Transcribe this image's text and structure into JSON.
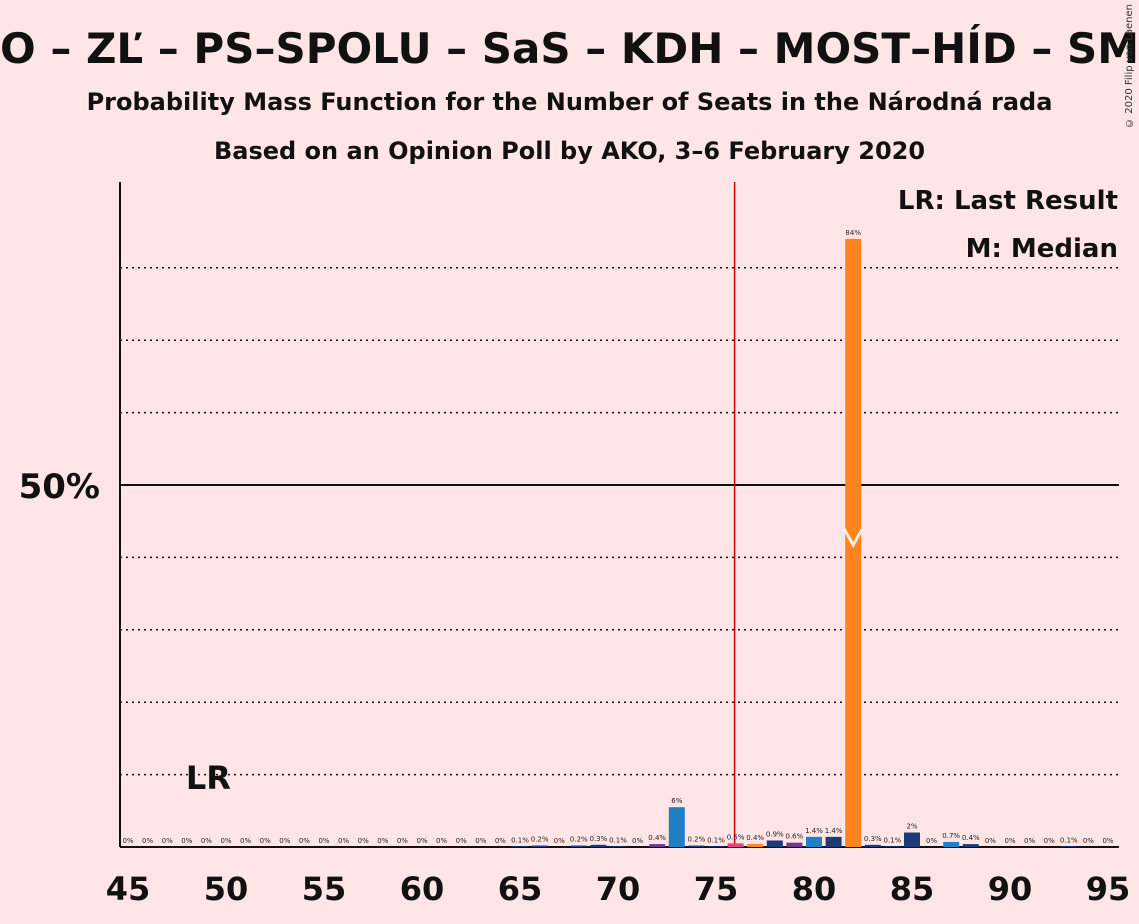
{
  "title": "O – ZĽ – PS–SPOLU – SaS – KDH – MOST–HÍD – SMK",
  "subtitle1": "Probability Mass Function for the Number of Seats in the Národná rada",
  "subtitle2": "Based on an Opinion Poll by AKO, 3–6 February 2020",
  "copyright": "© 2020 Filip van Laenen",
  "legend": {
    "lr": "LR: Last Result",
    "m": "M: Median"
  },
  "markers": {
    "lr_label": "LR",
    "median_symbol": "M"
  },
  "colors": {
    "background": "#ffe5e5",
    "dark_blue": "#1a3a7a",
    "blue": "#1f7fc8",
    "purple": "#6b3a8a",
    "red_pink": "#e8447a",
    "orange": "#ff8420",
    "majority_line": "#cc0000"
  },
  "chart_data": {
    "type": "bar",
    "xlim": [
      45,
      95
    ],
    "ylim": [
      0,
      92
    ],
    "y_tick_label": "50%",
    "y_tick_value": 50,
    "x_ticks": [
      45,
      50,
      55,
      60,
      65,
      70,
      75,
      80,
      85,
      90,
      95
    ],
    "gridlines": [
      10,
      20,
      30,
      40,
      60,
      70,
      80
    ],
    "majority_line_x": 76,
    "last_result_x": 49,
    "median_x": 82,
    "bars": [
      {
        "x": 45,
        "value": 0,
        "label": "0%",
        "color": "dark_blue"
      },
      {
        "x": 46,
        "value": 0,
        "label": "0%",
        "color": "dark_blue"
      },
      {
        "x": 47,
        "value": 0,
        "label": "0%",
        "color": "dark_blue"
      },
      {
        "x": 48,
        "value": 0,
        "label": "0%",
        "color": "dark_blue"
      },
      {
        "x": 49,
        "value": 0,
        "label": "0%",
        "color": "dark_blue"
      },
      {
        "x": 50,
        "value": 0,
        "label": "0%",
        "color": "dark_blue"
      },
      {
        "x": 51,
        "value": 0,
        "label": "0%",
        "color": "dark_blue"
      },
      {
        "x": 52,
        "value": 0,
        "label": "0%",
        "color": "dark_blue"
      },
      {
        "x": 53,
        "value": 0,
        "label": "0%",
        "color": "dark_blue"
      },
      {
        "x": 54,
        "value": 0,
        "label": "0%",
        "color": "dark_blue"
      },
      {
        "x": 55,
        "value": 0,
        "label": "0%",
        "color": "dark_blue"
      },
      {
        "x": 56,
        "value": 0,
        "label": "0%",
        "color": "dark_blue"
      },
      {
        "x": 57,
        "value": 0,
        "label": "0%",
        "color": "dark_blue"
      },
      {
        "x": 58,
        "value": 0,
        "label": "0%",
        "color": "dark_blue"
      },
      {
        "x": 59,
        "value": 0,
        "label": "0%",
        "color": "dark_blue"
      },
      {
        "x": 60,
        "value": 0,
        "label": "0%",
        "color": "dark_blue"
      },
      {
        "x": 61,
        "value": 0,
        "label": "0%",
        "color": "dark_blue"
      },
      {
        "x": 62,
        "value": 0,
        "label": "0%",
        "color": "dark_blue"
      },
      {
        "x": 63,
        "value": 0,
        "label": "0%",
        "color": "dark_blue"
      },
      {
        "x": 64,
        "value": 0,
        "label": "0%",
        "color": "dark_blue"
      },
      {
        "x": 65,
        "value": 0.1,
        "label": "0.1%",
        "color": "dark_blue"
      },
      {
        "x": 66,
        "value": 0.2,
        "label": "0.2%",
        "color": "dark_blue"
      },
      {
        "x": 67,
        "value": 0,
        "label": "0%",
        "color": "dark_blue"
      },
      {
        "x": 68,
        "value": 0.2,
        "label": "0.2%",
        "color": "dark_blue"
      },
      {
        "x": 69,
        "value": 0.3,
        "label": "0.3%",
        "color": "dark_blue"
      },
      {
        "x": 70,
        "value": 0.1,
        "label": "0.1%",
        "color": "dark_blue"
      },
      {
        "x": 71,
        "value": 0,
        "label": "0%",
        "color": "dark_blue"
      },
      {
        "x": 72,
        "value": 0.4,
        "label": "0.4%",
        "color": "purple"
      },
      {
        "x": 73,
        "value": 5.5,
        "label": "6%",
        "color": "blue"
      },
      {
        "x": 74,
        "value": 0.2,
        "label": "0.2%",
        "color": "dark_blue"
      },
      {
        "x": 75,
        "value": 0.1,
        "label": "0.1%",
        "color": "dark_blue"
      },
      {
        "x": 76,
        "value": 0.5,
        "label": "0.5%",
        "color": "red_pink"
      },
      {
        "x": 77,
        "value": 0.4,
        "label": "0.4%",
        "color": "orange"
      },
      {
        "x": 78,
        "value": 0.9,
        "label": "0.9%",
        "color": "dark_blue"
      },
      {
        "x": 79,
        "value": 0.6,
        "label": "0.6%",
        "color": "purple"
      },
      {
        "x": 80,
        "value": 1.4,
        "label": "1.4%",
        "color": "blue"
      },
      {
        "x": 81,
        "value": 1.4,
        "label": "1.4%",
        "color": "dark_blue"
      },
      {
        "x": 82,
        "value": 84,
        "label": "84%",
        "color": "orange"
      },
      {
        "x": 83,
        "value": 0.3,
        "label": "0.3%",
        "color": "dark_blue"
      },
      {
        "x": 84,
        "value": 0.1,
        "label": "0.1%",
        "color": "dark_blue"
      },
      {
        "x": 85,
        "value": 2,
        "label": "2%",
        "color": "dark_blue"
      },
      {
        "x": 86,
        "value": 0,
        "label": "0%",
        "color": "dark_blue"
      },
      {
        "x": 87,
        "value": 0.7,
        "label": "0.7%",
        "color": "blue"
      },
      {
        "x": 88,
        "value": 0.4,
        "label": "0.4%",
        "color": "dark_blue"
      },
      {
        "x": 89,
        "value": 0,
        "label": "0%",
        "color": "dark_blue"
      },
      {
        "x": 90,
        "value": 0,
        "label": "0%",
        "color": "dark_blue"
      },
      {
        "x": 91,
        "value": 0,
        "label": "0%",
        "color": "dark_blue"
      },
      {
        "x": 92,
        "value": 0,
        "label": "0%",
        "color": "dark_blue"
      },
      {
        "x": 93,
        "value": 0.1,
        "label": "0.1%",
        "color": "dark_blue"
      },
      {
        "x": 94,
        "value": 0,
        "label": "0%",
        "color": "dark_blue"
      },
      {
        "x": 95,
        "value": 0,
        "label": "0%",
        "color": "dark_blue"
      }
    ]
  }
}
